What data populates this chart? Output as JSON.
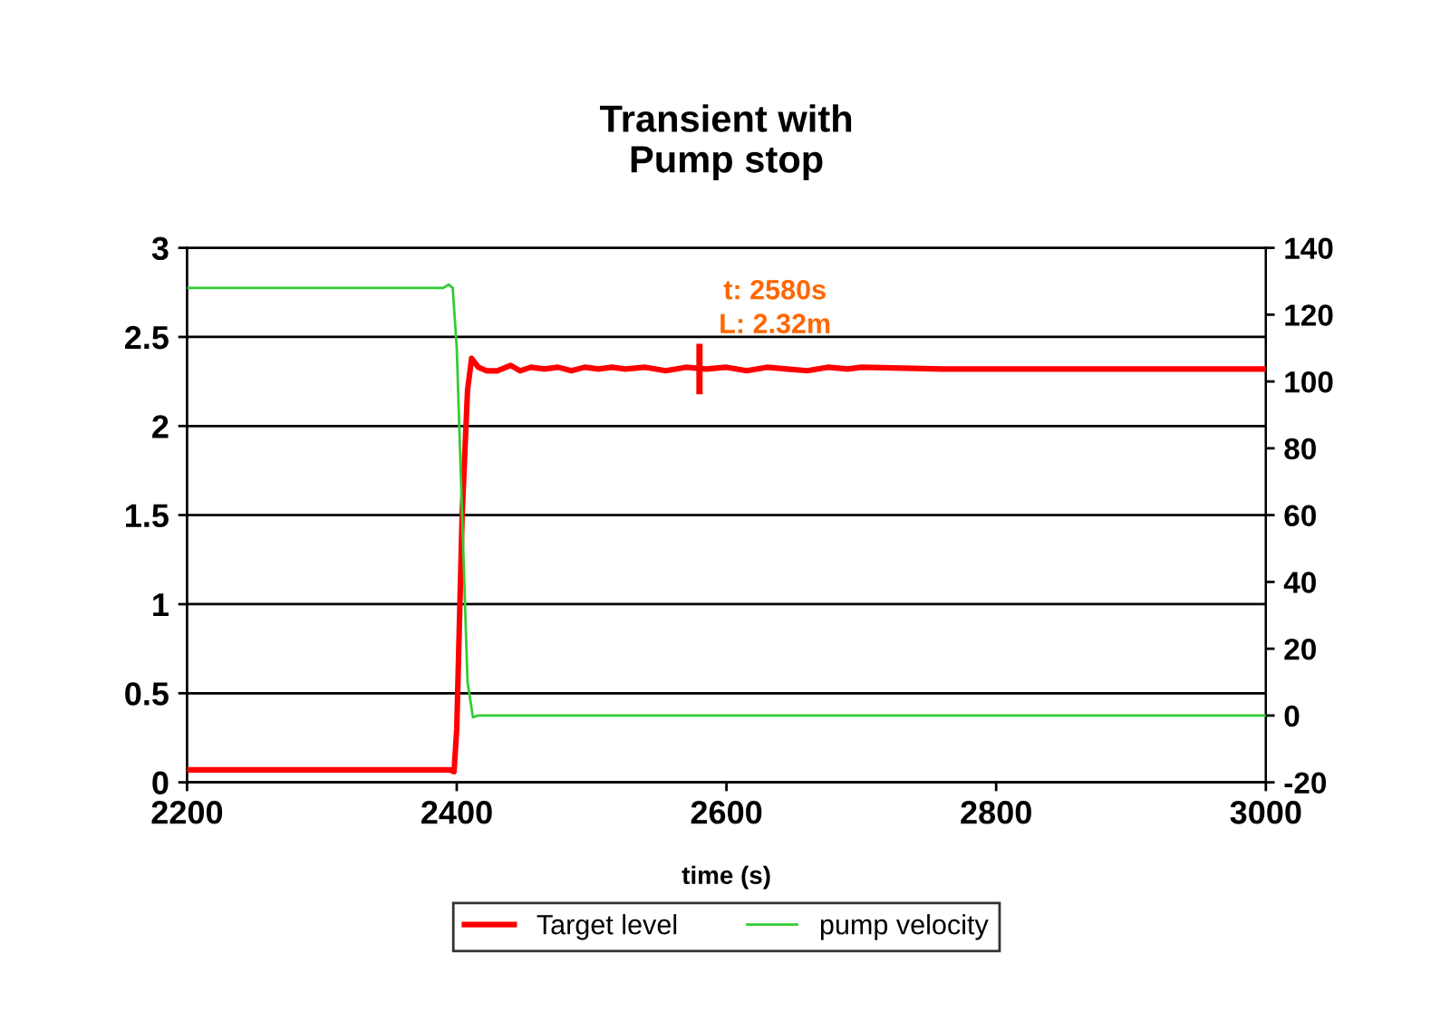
{
  "chart_data": {
    "type": "line",
    "title": "Transient with\nPump stop",
    "xlabel": "time (s)",
    "xlim": [
      2200,
      3000
    ],
    "xticks": [
      2200,
      2400,
      2600,
      2800,
      3000
    ],
    "ylim": [
      0,
      3
    ],
    "yticks": [
      0,
      0.5,
      1,
      1.5,
      2,
      2.5,
      3
    ],
    "y2lim": [
      -20,
      140
    ],
    "y2ticks": [
      -20,
      0,
      20,
      40,
      60,
      80,
      100,
      120,
      140
    ],
    "grid": "y",
    "legend": "bottom",
    "marker": "none",
    "line_style": "solid",
    "series": [
      {
        "name": "Target level",
        "color": "#ff0000",
        "x": [
          2200,
          2395,
          2398,
          2400,
          2404,
          2408,
          2411,
          2416,
          2422,
          2430,
          2440,
          2447,
          2455,
          2465,
          2475,
          2485,
          2495,
          2505,
          2515,
          2525,
          2540,
          2555,
          2570,
          2585,
          2600,
          2615,
          2630,
          2645,
          2660,
          2675,
          2690,
          2700,
          2760,
          3000
        ],
        "values": [
          0.07,
          0.07,
          0.06,
          0.3,
          1.5,
          2.2,
          2.38,
          2.33,
          2.31,
          2.31,
          2.34,
          2.31,
          2.33,
          2.32,
          2.33,
          2.31,
          2.33,
          2.32,
          2.33,
          2.32,
          2.33,
          2.31,
          2.33,
          2.32,
          2.33,
          2.31,
          2.33,
          2.32,
          2.31,
          2.33,
          2.32,
          2.33,
          2.32,
          2.32
        ]
      },
      {
        "name": "pump velocity",
        "color": "#33cc33",
        "axis": "y2",
        "x": [
          2200,
          2390,
          2394,
          2397,
          2400,
          2404,
          2408,
          2412,
          2416,
          3000
        ],
        "values": [
          128,
          128,
          129,
          128,
          110,
          60,
          10,
          -0.5,
          0,
          0
        ]
      }
    ],
    "annotations": [
      {
        "text": "t: 2580s\nL: 2.32m",
        "x": 2580,
        "y": 2.32
      }
    ]
  }
}
